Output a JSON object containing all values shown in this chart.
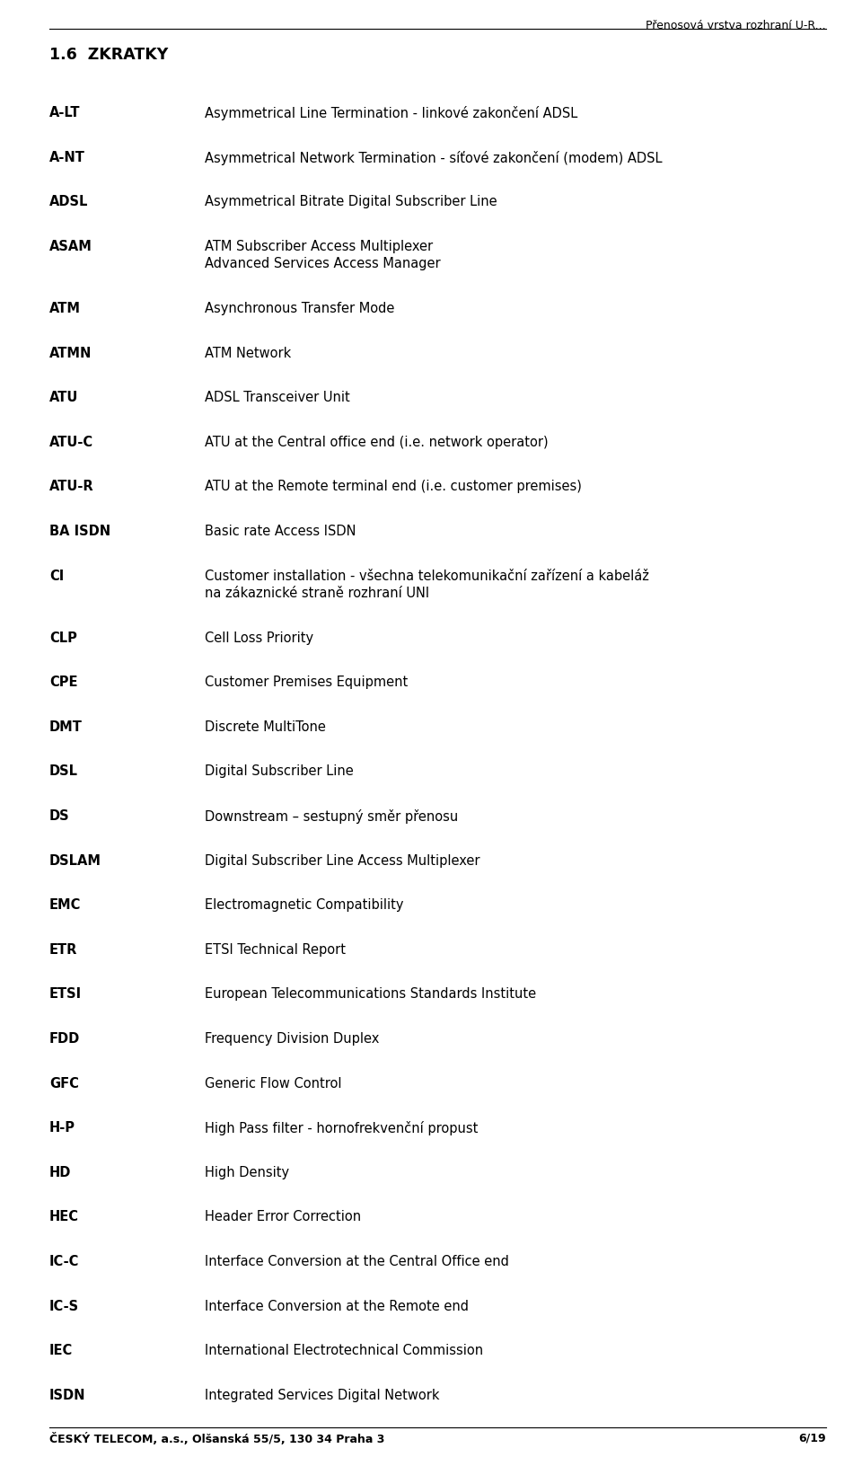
{
  "header_right": "Přenosová vrstva rozhraní U-R...",
  "section_title": "1.6  ZKRATKY",
  "entries": [
    [
      "A-LT",
      "Asymmetrical Line Termination - linkové zakončení ADSL"
    ],
    [
      "A-NT",
      "Asymmetrical Network Termination - síťové zakončení (modem) ADSL"
    ],
    [
      "ADSL",
      "Asymmetrical Bitrate Digital Subscriber Line"
    ],
    [
      "ASAM",
      "ATM Subscriber Access Multiplexer\nAdvanced Services Access Manager"
    ],
    [
      "ATM",
      "Asynchronous Transfer Mode"
    ],
    [
      "ATMN",
      "ATM Network"
    ],
    [
      "ATU",
      "ADSL Transceiver Unit"
    ],
    [
      "ATU-C",
      "ATU at the Central office end (i.e. network operator)"
    ],
    [
      "ATU-R",
      "ATU at the Remote terminal end (i.e. customer premises)"
    ],
    [
      "BA ISDN",
      "Basic rate Access ISDN"
    ],
    [
      "CI",
      "Customer installation - všechna telekomunikační zařízení a kabeláž\nna zákaznické straně rozhraní UNI"
    ],
    [
      "CLP",
      "Cell Loss Priority"
    ],
    [
      "CPE",
      "Customer Premises Equipment"
    ],
    [
      "DMT",
      "Discrete MultiTone"
    ],
    [
      "DSL",
      "Digital Subscriber Line"
    ],
    [
      "DS",
      "Downstream – sestupný směr přenosu"
    ],
    [
      "DSLAM",
      "Digital Subscriber Line Access Multiplexer"
    ],
    [
      "EMC",
      "Electromagnetic Compatibility"
    ],
    [
      "ETR",
      "ETSI Technical Report"
    ],
    [
      "ETSI",
      "European Telecommunications Standards Institute"
    ],
    [
      "FDD",
      "Frequency Division Duplex"
    ],
    [
      "GFC",
      "Generic Flow Control"
    ],
    [
      "H-P",
      "High Pass filter - hornofrekvenční propust"
    ],
    [
      "HD",
      "High Density"
    ],
    [
      "HEC",
      "Header Error Correction"
    ],
    [
      "IC-C",
      "Interface Conversion at the Central Office end"
    ],
    [
      "IC-S",
      "Interface Conversion at the Remote end"
    ],
    [
      "IEC",
      "International Electrotechnical Commission"
    ],
    [
      "ISDN",
      "Integrated Services Digital Network"
    ]
  ],
  "footer_left": "ČESKÝ TELECOM, a.s., Olšanská 55/5, 130 34 Praha 3",
  "footer_right": "6/19",
  "bg_color": "#ffffff",
  "text_color": "#000000",
  "font_size_header": 9.0,
  "font_size_section": 12.5,
  "font_size_body": 10.5,
  "font_size_footer": 9.0
}
